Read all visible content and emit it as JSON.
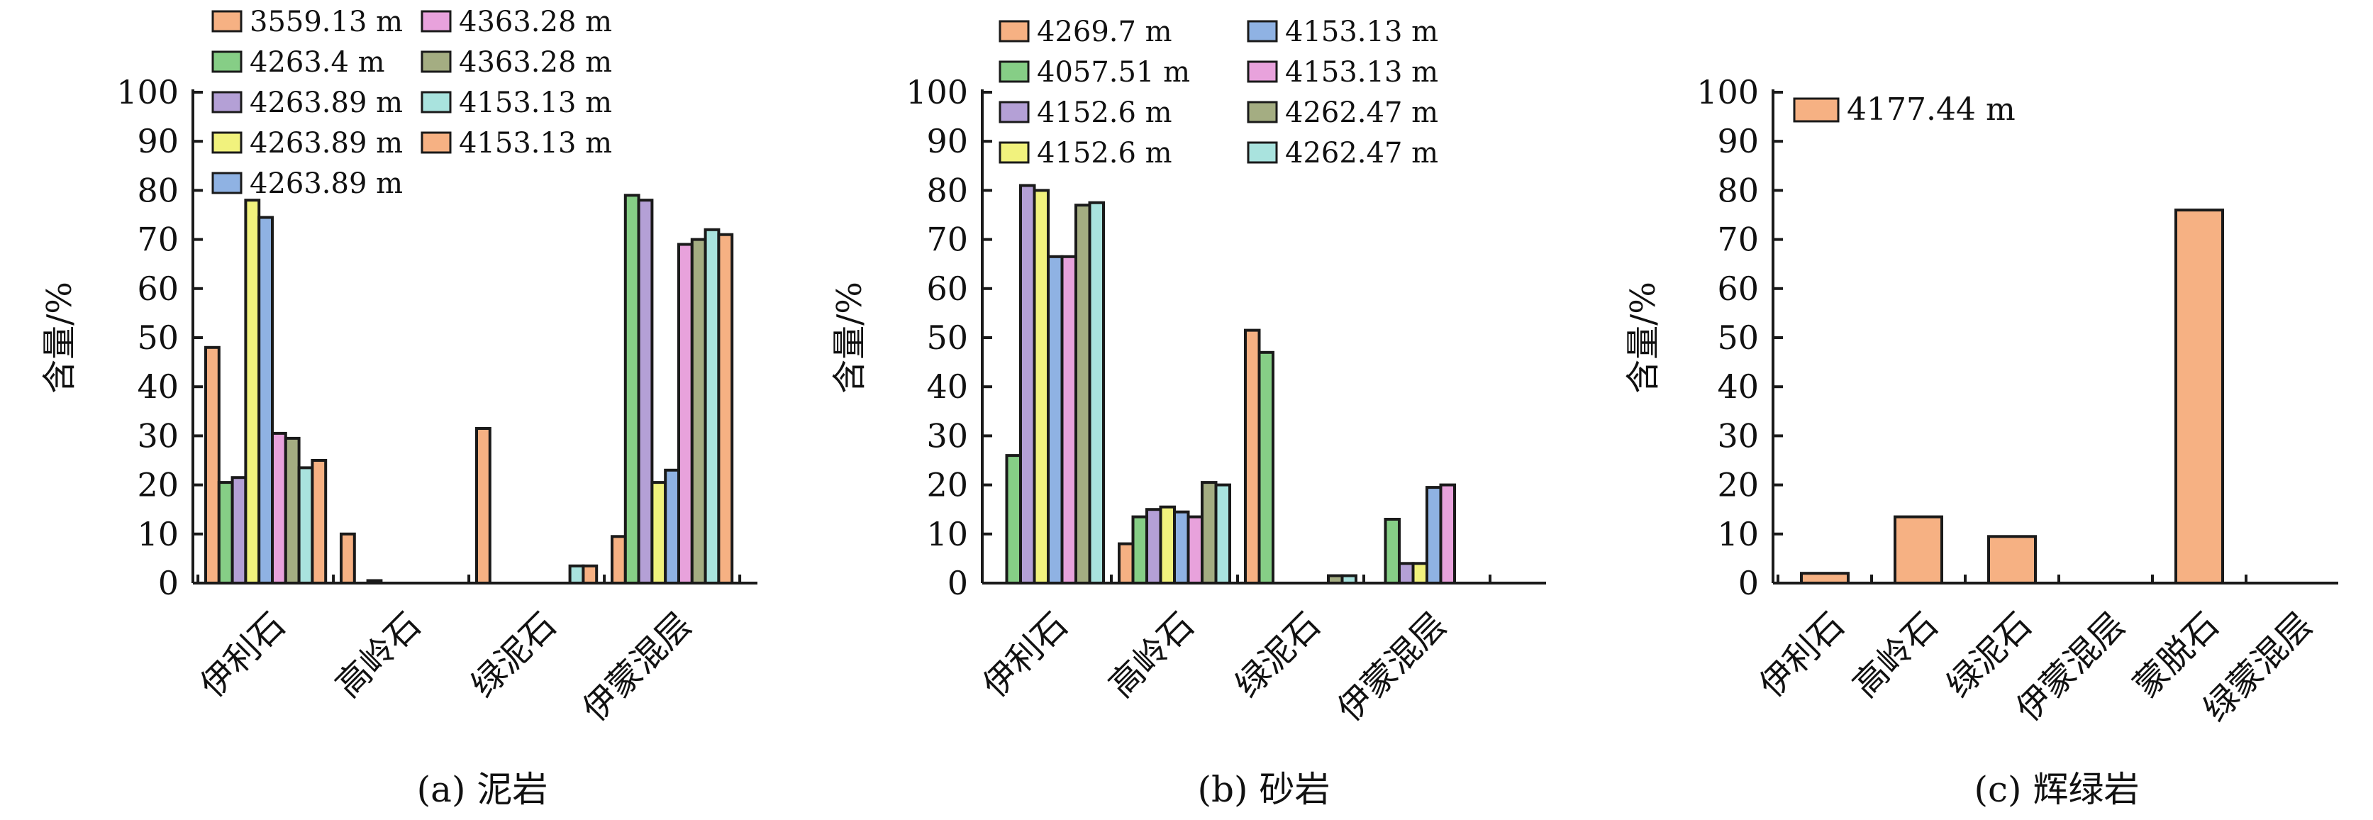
{
  "charts": [
    {
      "caption": "(a) 泥岩",
      "ylabel": "含量/%",
      "ylim": [
        0,
        100
      ],
      "yticks": [
        0,
        10,
        20,
        30,
        40,
        50,
        60,
        70,
        80,
        90,
        100
      ],
      "categories": [
        "伊利石",
        "高岭石",
        "绿泥石",
        "伊蒙混层"
      ],
      "series": [
        {
          "name": "3559.13 m",
          "color": "#f6b183",
          "values": [
            48,
            10,
            31.5,
            9.5
          ]
        },
        {
          "name": "4263.4 m",
          "color": "#86ce86",
          "values": [
            20.5,
            0,
            0,
            79
          ]
        },
        {
          "name": "4263.89 m",
          "color": "#b4a0d6",
          "values": [
            21.5,
            0.5,
            0,
            78
          ]
        },
        {
          "name": "4263.89 m",
          "color": "#f1f27d",
          "values": [
            78,
            0,
            0,
            20.5
          ]
        },
        {
          "name": "4263.89 m",
          "color": "#8fb2e3",
          "values": [
            74.5,
            0,
            0,
            23
          ]
        },
        {
          "name": "4363.28 m",
          "color": "#e8a2dc",
          "values": [
            30.5,
            0,
            0,
            69
          ]
        },
        {
          "name": "4363.28 m",
          "color": "#a4ad82",
          "values": [
            29.5,
            0,
            0,
            70
          ]
        },
        {
          "name": "4153.13 m",
          "color": "#a9e3de",
          "values": [
            23.5,
            0,
            3.5,
            72
          ]
        },
        {
          "name": "4153.13 m",
          "color": "#f6b183",
          "values": [
            25,
            0,
            3.5,
            71
          ]
        }
      ]
    },
    {
      "caption": "(b) 砂岩",
      "ylabel": "含量/%",
      "ylim": [
        0,
        100
      ],
      "yticks": [
        0,
        10,
        20,
        30,
        40,
        50,
        60,
        70,
        80,
        90,
        100
      ],
      "categories": [
        "伊利石",
        "高岭石",
        "绿泥石",
        "伊蒙混层"
      ],
      "series": [
        {
          "name": "4269.7 m",
          "color": "#f6b183",
          "values": [
            0,
            8,
            51.5,
            0
          ]
        },
        {
          "name": "4057.51 m",
          "color": "#86ce86",
          "values": [
            26,
            13.5,
            47,
            13
          ]
        },
        {
          "name": "4152.6 m",
          "color": "#b4a0d6",
          "values": [
            81,
            15,
            0,
            4
          ]
        },
        {
          "name": "4152.6 m",
          "color": "#f1f27d",
          "values": [
            80,
            15.5,
            0,
            4
          ]
        },
        {
          "name": "4153.13 m",
          "color": "#8fb2e3",
          "values": [
            66.5,
            14.5,
            0,
            19.5
          ]
        },
        {
          "name": "4153.13 m",
          "color": "#e8a2dc",
          "values": [
            66.5,
            13.5,
            0,
            20
          ]
        },
        {
          "name": "4262.47 m",
          "color": "#a4ad82",
          "values": [
            77,
            20.5,
            1.5,
            0
          ]
        },
        {
          "name": "4262.47 m",
          "color": "#a9e3de",
          "values": [
            77.5,
            20,
            1.5,
            0
          ]
        }
      ]
    },
    {
      "caption": "(c) 辉绿岩",
      "ylabel": "含量/%",
      "ylim": [
        0,
        100
      ],
      "yticks": [
        0,
        10,
        20,
        30,
        40,
        50,
        60,
        70,
        80,
        90,
        100
      ],
      "categories": [
        "伊利石",
        "高岭石",
        "绿泥石",
        "伊蒙混层",
        "蒙脱石",
        "绿蒙混层"
      ],
      "series": [
        {
          "name": "4177.44 m",
          "color": "#f6b183",
          "values": [
            2,
            13.5,
            9.5,
            0,
            76,
            0
          ]
        }
      ]
    }
  ]
}
